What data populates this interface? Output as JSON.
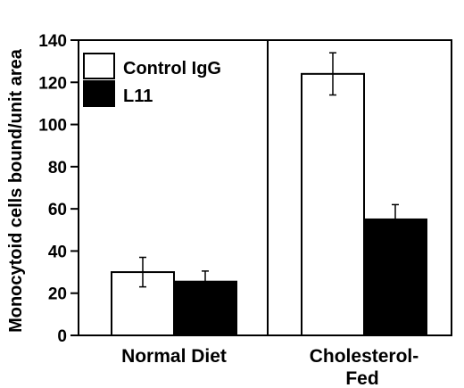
{
  "chart_data": {
    "type": "bar",
    "title": "",
    "xlabel": "",
    "ylabel": "Monocytoid cells bound/unit area",
    "ylim": [
      0,
      140
    ],
    "yticks": [
      0,
      20,
      40,
      60,
      80,
      100,
      120,
      140
    ],
    "grid": false,
    "legend_position": "top-left",
    "categories": [
      {
        "label_lines": [
          "Normal Diet"
        ]
      },
      {
        "label_lines": [
          "Cholesterol-",
          "Fed"
        ]
      }
    ],
    "series": [
      {
        "name": "Control IgG",
        "fill": "#ffffff",
        "values": [
          30,
          124
        ],
        "errors": [
          7,
          10
        ]
      },
      {
        "name": "L11",
        "fill": "#000000",
        "values": [
          25.5,
          55
        ],
        "errors": [
          5,
          7
        ]
      }
    ]
  }
}
